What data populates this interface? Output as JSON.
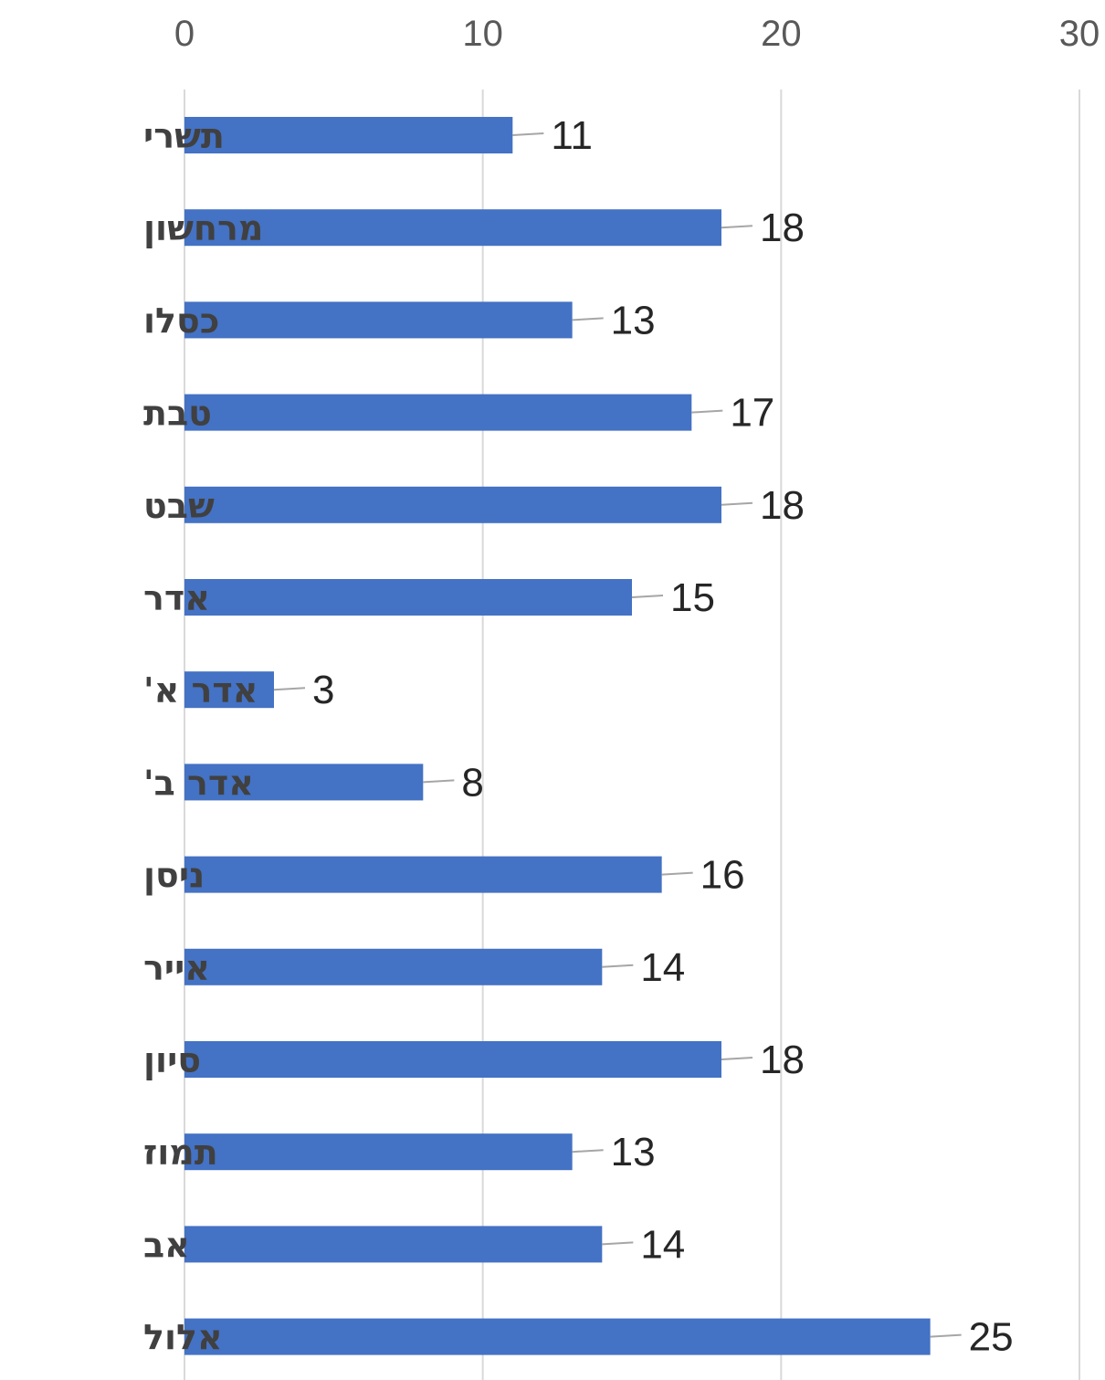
{
  "chart_data": {
    "type": "bar",
    "orientation": "horizontal",
    "title": "",
    "xlabel": "",
    "ylabel": "",
    "xlim": [
      0,
      30
    ],
    "ticks": [
      0,
      10,
      20,
      30
    ],
    "tick_labels": [
      "0",
      "10",
      "20",
      "30"
    ],
    "axis_position": "top",
    "grid": true,
    "legend": "none",
    "bar_color": "#4472C4",
    "categories": [
      "תשרי",
      "מרחשון",
      "כסלו",
      "טבת",
      "שבט",
      "אדר",
      "אדר א'",
      "אדר ב'",
      "ניסן",
      "אייר",
      "סיון",
      "תמוז",
      "אב",
      "אלול"
    ],
    "values": [
      11,
      18,
      13,
      17,
      18,
      15,
      3,
      8,
      16,
      14,
      18,
      13,
      14,
      25
    ],
    "data_labels": [
      "11",
      "18",
      "13",
      "17",
      "18",
      "15",
      "3",
      "8",
      "16",
      "14",
      "18",
      "13",
      "14",
      "25"
    ]
  }
}
